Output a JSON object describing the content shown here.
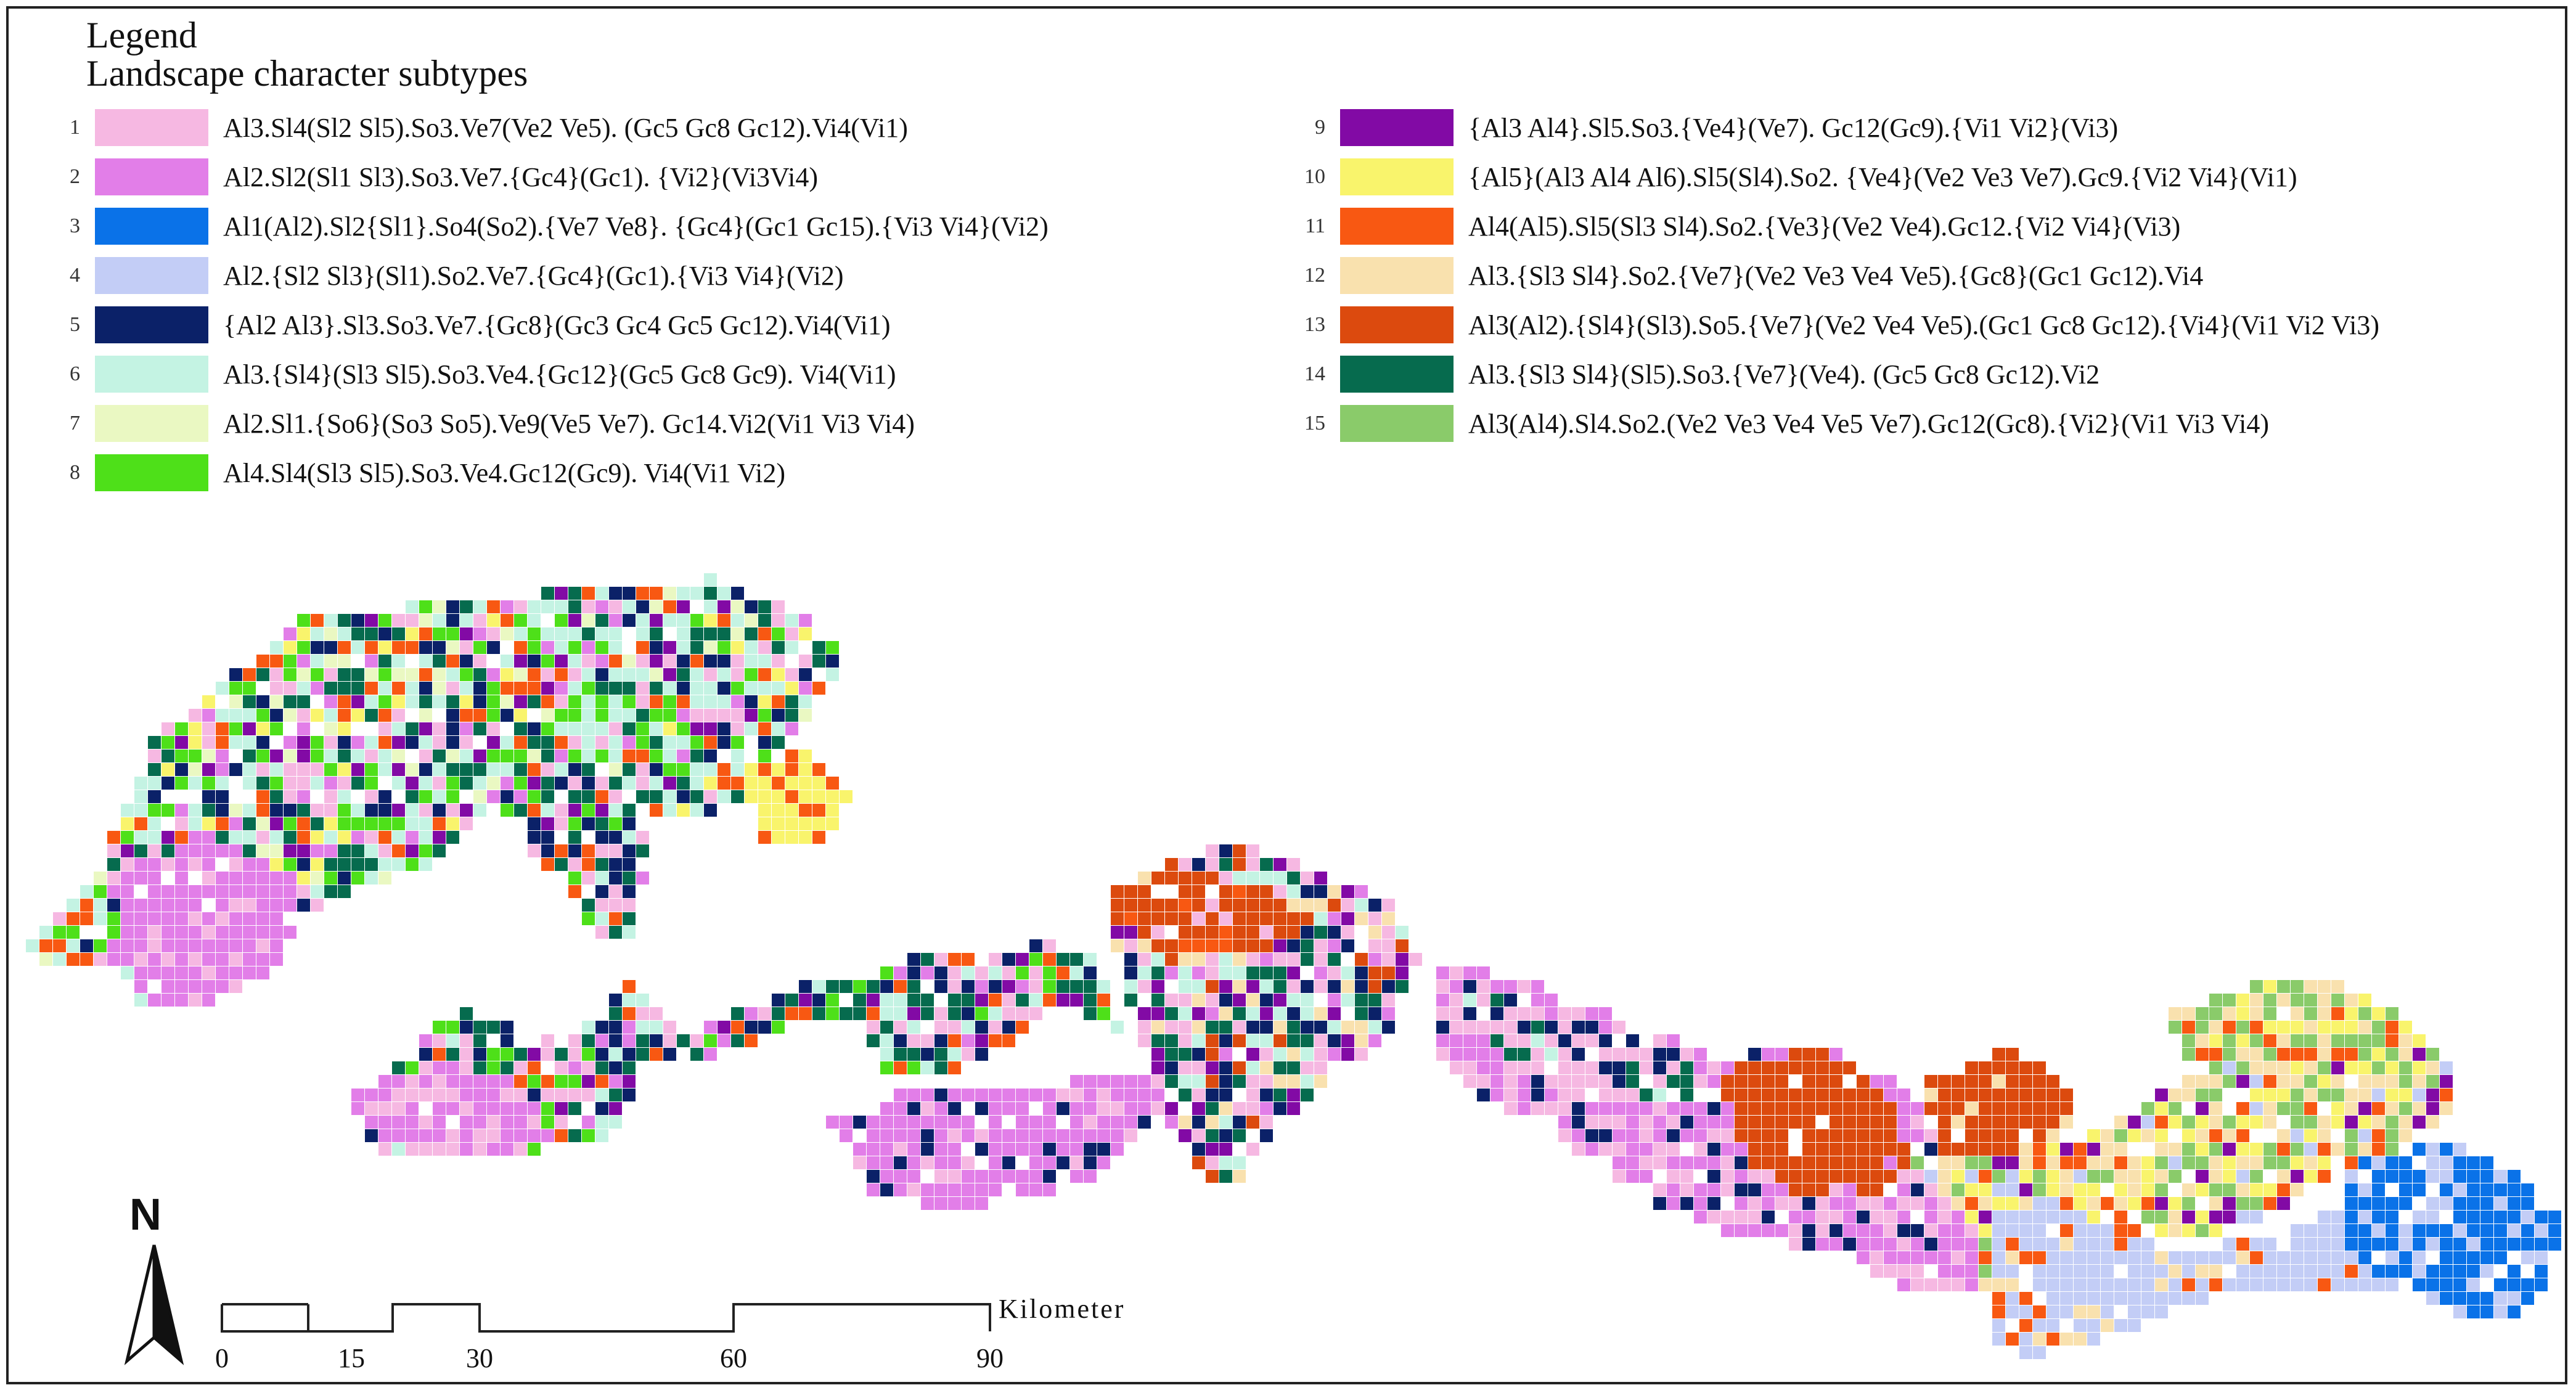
{
  "legend": {
    "title": "Legend",
    "subtitle": "Landscape character subtypes",
    "items": [
      {
        "num": "1",
        "label": "Al3.Sl4(Sl2 Sl5).So3.Ve7(Ve2 Ve5). (Gc5 Gc8 Gc12).Vi4(Vi1)",
        "color": "#f6b8e2"
      },
      {
        "num": "2",
        "label": "Al2.Sl2(Sl1 Sl3).So3.Ve7.{Gc4}(Gc1). {Vi2}(Vi3Vi4)",
        "color": "#e27ee8"
      },
      {
        "num": "3",
        "label": "Al1(Al2).Sl2{Sl1}.So4(So2).{Ve7 Ve8}. {Gc4}(Gc1 Gc15).{Vi3 Vi4}(Vi2)",
        "color": "#0a72e8"
      },
      {
        "num": "4",
        "label": "Al2.{Sl2 Sl3}(Sl1).So2.Ve7.{Gc4}(Gc1).{Vi3 Vi4}(Vi2)",
        "color": "#c3cdf6"
      },
      {
        "num": "5",
        "label": "{Al2 Al3}.Sl3.So3.Ve7.{Gc8}(Gc3 Gc4 Gc5 Gc12).Vi4(Vi1)",
        "color": "#0b2168"
      },
      {
        "num": "6",
        "label": "Al3.{Sl4}(Sl3 Sl5).So3.Ve4.{Gc12}(Gc5 Gc8 Gc9). Vi4(Vi1)",
        "color": "#c4f3e3"
      },
      {
        "num": "7",
        "label": "Al2.Sl1.{So6}(So3 So5).Ve9(Ve5 Ve7). Gc14.Vi2(Vi1 Vi3 Vi4)",
        "color": "#eaf8c2"
      },
      {
        "num": "8",
        "label": "Al4.Sl4(Sl3 Sl5).So3.Ve4.Gc12(Gc9). Vi4(Vi1 Vi2)",
        "color": "#4ee019"
      },
      {
        "num": "9",
        "label": "{Al3 Al4}.Sl5.So3.{Ve4}(Ve7). Gc12(Gc9).{Vi1 Vi2}(Vi3)",
        "color": "#820aa5"
      },
      {
        "num": "10",
        "label": "{Al5}(Al3 Al4 Al6).Sl5(Sl4).So2. {Ve4}(Ve2 Ve3 Ve7).Gc9.{Vi2 Vi4}(Vi1)",
        "color": "#f9f46c"
      },
      {
        "num": "11",
        "label": "Al4(Al5).Sl5(Sl3 Sl4).So2.{Ve3}(Ve2 Ve4).Gc12.{Vi2 Vi4}(Vi3)",
        "color": "#f85812"
      },
      {
        "num": "12",
        "label": "Al3.{Sl3 Sl4}.So2.{Ve7}(Ve2 Ve3 Ve4 Ve5).{Gc8}(Gc1 Gc12).Vi4",
        "color": "#f9e1ae"
      },
      {
        "num": "13",
        "label": "Al3(Al2).{Sl4}(Sl3).So5.{Ve7}(Ve2 Ve4 Ve5).(Gc1 Gc8 Gc12).{Vi4}(Vi1 Vi2 Vi3)",
        "color": "#dc4a0e"
      },
      {
        "num": "14",
        "label": "Al3.{Sl3 Sl4}(Sl5).So3.{Ve7}(Ve4). (Gc5 Gc8 Gc12).Vi2",
        "color": "#066b4e"
      },
      {
        "num": "15",
        "label": "Al3(Al4).Sl4.So2.(Ve2 Ve3 Ve4 Ve5 Ve7).Gc12(Gc8).{Vi2}(Vi1 Vi3 Vi4)",
        "color": "#8acb6a"
      }
    ]
  },
  "north_arrow": {
    "letter": "N"
  },
  "scale_bar": {
    "unit": "Kilometer",
    "ticks": [
      "0",
      "15",
      "30",
      "60",
      "90"
    ]
  }
}
